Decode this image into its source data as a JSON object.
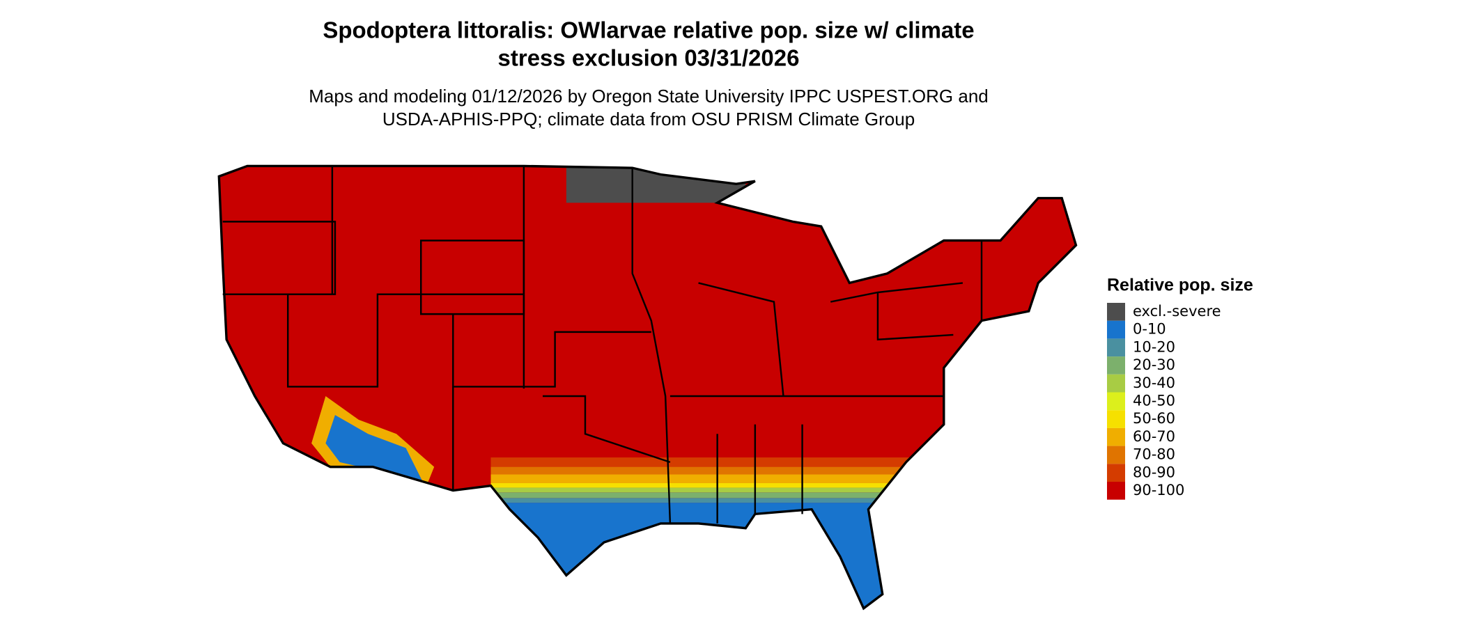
{
  "header": {
    "title_lines": [
      "Spodoptera littoralis: OWlarvae relative pop. size w/ climate",
      "stress exclusion 03/31/2026"
    ],
    "subtitle_lines": [
      "Maps and modeling 01/12/2026 by Oregon State University IPPC USPEST.ORG and",
      "USDA-APHIS-PPQ; climate data from OSU PRISM Climate Group"
    ]
  },
  "legend": {
    "title": "Relative pop. size",
    "items": [
      {
        "label": "excl.-severe",
        "color": "#4d4d4d"
      },
      {
        "label": "0-10",
        "color": "#1874cd"
      },
      {
        "label": "10-20",
        "color": "#4a90a0"
      },
      {
        "label": "20-30",
        "color": "#7cb06c"
      },
      {
        "label": "30-40",
        "color": "#a8cc44"
      },
      {
        "label": "40-50",
        "color": "#dcef1c"
      },
      {
        "label": "50-60",
        "color": "#f6e000"
      },
      {
        "label": "60-70",
        "color": "#f0ae00"
      },
      {
        "label": "70-80",
        "color": "#e07400"
      },
      {
        "label": "80-90",
        "color": "#d43c00"
      },
      {
        "label": "90-100",
        "color": "#c80000"
      }
    ]
  }
}
